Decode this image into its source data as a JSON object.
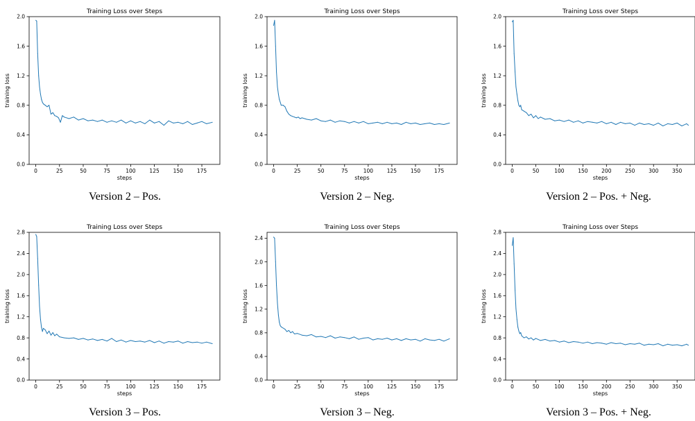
{
  "figure": {
    "domain": "Chart",
    "layout": "grid 2 rows x 3 columns"
  },
  "chart_data": [
    {
      "type": "line",
      "title": "Training Loss over Steps",
      "xlabel": "steps",
      "ylabel": "training loss",
      "caption": "Version 2 – Pos.",
      "xlim": [
        -7,
        194
      ],
      "ylim": [
        0,
        2.0
      ],
      "xticks": [
        0,
        25,
        50,
        75,
        100,
        125,
        150,
        175
      ],
      "yticks": [
        0.0,
        0.4,
        0.8,
        1.2,
        1.6,
        2.0
      ],
      "grid": false,
      "legend": "none",
      "series": [
        {
          "color": "#1f77b4",
          "x": [
            0,
            1,
            2,
            3,
            4,
            5,
            6,
            7,
            8,
            10,
            12,
            14,
            16,
            18,
            20,
            22,
            24,
            26,
            28,
            30,
            35,
            40,
            45,
            50,
            55,
            60,
            65,
            70,
            75,
            80,
            85,
            90,
            95,
            100,
            105,
            110,
            115,
            120,
            125,
            130,
            135,
            140,
            145,
            150,
            155,
            160,
            165,
            170,
            175,
            180,
            186
          ],
          "y": [
            1.95,
            1.94,
            1.5,
            1.2,
            1.05,
            0.95,
            0.88,
            0.84,
            0.82,
            0.8,
            0.78,
            0.8,
            0.68,
            0.7,
            0.66,
            0.65,
            0.63,
            0.57,
            0.66,
            0.64,
            0.62,
            0.64,
            0.6,
            0.62,
            0.59,
            0.6,
            0.58,
            0.6,
            0.57,
            0.59,
            0.57,
            0.6,
            0.56,
            0.59,
            0.56,
            0.58,
            0.55,
            0.6,
            0.56,
            0.58,
            0.53,
            0.59,
            0.56,
            0.57,
            0.55,
            0.58,
            0.54,
            0.56,
            0.58,
            0.55,
            0.57
          ]
        }
      ]
    },
    {
      "type": "line",
      "title": "Training Loss over Steps",
      "xlabel": "steps",
      "ylabel": "training loss",
      "caption": "Version 2 – Neg.",
      "xlim": [
        -7,
        194
      ],
      "ylim": [
        0,
        2.0
      ],
      "xticks": [
        0,
        25,
        50,
        75,
        100,
        125,
        150,
        175
      ],
      "yticks": [
        0.0,
        0.4,
        0.8,
        1.2,
        1.6,
        2.0
      ],
      "grid": false,
      "legend": "none",
      "series": [
        {
          "color": "#1f77b4",
          "x": [
            0,
            1,
            2,
            3,
            4,
            5,
            6,
            7,
            8,
            10,
            12,
            14,
            16,
            18,
            20,
            22,
            24,
            26,
            28,
            30,
            35,
            40,
            45,
            50,
            55,
            60,
            65,
            70,
            75,
            80,
            85,
            90,
            95,
            100,
            105,
            110,
            115,
            120,
            125,
            130,
            135,
            140,
            145,
            150,
            155,
            160,
            165,
            170,
            175,
            180,
            186
          ],
          "y": [
            1.88,
            1.95,
            1.6,
            1.25,
            1.05,
            0.95,
            0.88,
            0.84,
            0.8,
            0.8,
            0.78,
            0.72,
            0.68,
            0.66,
            0.65,
            0.64,
            0.63,
            0.64,
            0.62,
            0.63,
            0.61,
            0.6,
            0.62,
            0.59,
            0.58,
            0.6,
            0.57,
            0.59,
            0.58,
            0.56,
            0.58,
            0.56,
            0.58,
            0.55,
            0.56,
            0.57,
            0.55,
            0.57,
            0.55,
            0.56,
            0.54,
            0.57,
            0.55,
            0.56,
            0.54,
            0.55,
            0.56,
            0.54,
            0.55,
            0.54,
            0.56
          ]
        }
      ]
    },
    {
      "type": "line",
      "title": "Training Loss over Steps",
      "xlabel": "steps",
      "ylabel": "training loss",
      "caption": "Version 2 – Pos. + Neg.",
      "xlim": [
        -14,
        388
      ],
      "ylim": [
        0,
        2.0
      ],
      "xticks": [
        0,
        50,
        100,
        150,
        200,
        250,
        300,
        350
      ],
      "yticks": [
        0.0,
        0.4,
        0.8,
        1.2,
        1.6,
        2.0
      ],
      "grid": false,
      "legend": "none",
      "series": [
        {
          "color": "#1f77b4",
          "x": [
            0,
            2,
            4,
            6,
            8,
            10,
            12,
            14,
            16,
            18,
            20,
            25,
            30,
            35,
            40,
            45,
            50,
            55,
            60,
            70,
            80,
            90,
            100,
            110,
            120,
            130,
            140,
            150,
            160,
            170,
            180,
            190,
            200,
            210,
            220,
            230,
            240,
            250,
            260,
            270,
            280,
            290,
            300,
            310,
            320,
            330,
            340,
            350,
            360,
            370,
            374
          ],
          "y": [
            1.93,
            1.95,
            1.5,
            1.25,
            1.05,
            0.95,
            0.86,
            0.8,
            0.78,
            0.8,
            0.74,
            0.72,
            0.7,
            0.66,
            0.68,
            0.63,
            0.66,
            0.62,
            0.64,
            0.61,
            0.62,
            0.59,
            0.6,
            0.58,
            0.6,
            0.57,
            0.59,
            0.56,
            0.58,
            0.57,
            0.56,
            0.58,
            0.55,
            0.57,
            0.54,
            0.57,
            0.55,
            0.56,
            0.53,
            0.56,
            0.54,
            0.55,
            0.53,
            0.56,
            0.52,
            0.55,
            0.54,
            0.56,
            0.52,
            0.55,
            0.53
          ]
        }
      ]
    },
    {
      "type": "line",
      "title": "Training Loss over Steps",
      "xlabel": "steps",
      "ylabel": "training loss",
      "caption": "Version 3 – Pos.",
      "xlim": [
        -7,
        194
      ],
      "ylim": [
        0,
        2.8
      ],
      "xticks": [
        0,
        25,
        50,
        75,
        100,
        125,
        150,
        175
      ],
      "yticks": [
        0.0,
        0.4,
        0.8,
        1.2,
        1.6,
        2.0,
        2.4,
        2.8
      ],
      "grid": false,
      "legend": "none",
      "series": [
        {
          "color": "#1f77b4",
          "x": [
            0,
            1,
            2,
            3,
            4,
            5,
            6,
            7,
            8,
            10,
            12,
            14,
            16,
            18,
            20,
            22,
            25,
            30,
            35,
            40,
            45,
            50,
            55,
            60,
            65,
            70,
            75,
            80,
            85,
            90,
            95,
            100,
            105,
            110,
            115,
            120,
            125,
            130,
            135,
            140,
            145,
            150,
            155,
            160,
            165,
            170,
            175,
            180,
            186
          ],
          "y": [
            2.76,
            2.72,
            2.3,
            1.8,
            1.4,
            1.15,
            1.0,
            0.92,
            0.98,
            0.95,
            0.88,
            0.93,
            0.85,
            0.9,
            0.84,
            0.87,
            0.82,
            0.8,
            0.79,
            0.8,
            0.77,
            0.79,
            0.76,
            0.78,
            0.75,
            0.77,
            0.74,
            0.79,
            0.73,
            0.76,
            0.72,
            0.75,
            0.73,
            0.74,
            0.72,
            0.75,
            0.71,
            0.74,
            0.7,
            0.73,
            0.72,
            0.74,
            0.7,
            0.73,
            0.71,
            0.72,
            0.7,
            0.72,
            0.69
          ]
        }
      ]
    },
    {
      "type": "line",
      "title": "Training Loss over Steps",
      "xlabel": "steps",
      "ylabel": "training loss",
      "caption": "Version 3 – Neg.",
      "xlim": [
        -7,
        194
      ],
      "ylim": [
        0,
        2.5
      ],
      "xticks": [
        0,
        25,
        50,
        75,
        100,
        125,
        150,
        175
      ],
      "yticks": [
        0.0,
        0.4,
        0.8,
        1.2,
        1.6,
        2.0,
        2.4
      ],
      "grid": false,
      "legend": "none",
      "series": [
        {
          "color": "#1f77b4",
          "x": [
            0,
            1,
            2,
            3,
            4,
            5,
            6,
            7,
            8,
            10,
            12,
            14,
            16,
            18,
            20,
            22,
            25,
            30,
            35,
            40,
            45,
            50,
            55,
            60,
            65,
            70,
            75,
            80,
            85,
            90,
            95,
            100,
            105,
            110,
            115,
            120,
            125,
            130,
            135,
            140,
            145,
            150,
            155,
            160,
            165,
            170,
            175,
            180,
            186
          ],
          "y": [
            2.42,
            2.4,
            2.0,
            1.6,
            1.3,
            1.1,
            0.98,
            0.92,
            0.9,
            0.88,
            0.86,
            0.82,
            0.84,
            0.8,
            0.82,
            0.78,
            0.79,
            0.76,
            0.75,
            0.77,
            0.73,
            0.74,
            0.72,
            0.75,
            0.71,
            0.73,
            0.72,
            0.7,
            0.73,
            0.69,
            0.71,
            0.72,
            0.68,
            0.7,
            0.69,
            0.71,
            0.68,
            0.7,
            0.67,
            0.7,
            0.68,
            0.69,
            0.66,
            0.7,
            0.68,
            0.67,
            0.69,
            0.66,
            0.7
          ]
        }
      ]
    },
    {
      "type": "line",
      "title": "Training Loss over Steps",
      "xlabel": "steps",
      "ylabel": "training loss",
      "caption": "Version 3 – Pos. + Neg.",
      "xlim": [
        -14,
        388
      ],
      "ylim": [
        0,
        2.8
      ],
      "xticks": [
        0,
        50,
        100,
        150,
        200,
        250,
        300,
        350
      ],
      "yticks": [
        0.0,
        0.4,
        0.8,
        1.2,
        1.6,
        2.0,
        2.4,
        2.8
      ],
      "grid": false,
      "legend": "none",
      "series": [
        {
          "color": "#1f77b4",
          "x": [
            0,
            2,
            4,
            6,
            8,
            10,
            12,
            14,
            16,
            18,
            20,
            25,
            30,
            35,
            40,
            45,
            50,
            55,
            60,
            70,
            80,
            90,
            100,
            110,
            120,
            130,
            140,
            150,
            160,
            170,
            180,
            190,
            200,
            210,
            220,
            230,
            240,
            250,
            260,
            270,
            280,
            290,
            300,
            310,
            320,
            330,
            340,
            350,
            360,
            370,
            374
          ],
          "y": [
            2.55,
            2.7,
            2.2,
            1.7,
            1.35,
            1.15,
            1.0,
            0.93,
            0.88,
            0.9,
            0.84,
            0.8,
            0.82,
            0.78,
            0.8,
            0.76,
            0.79,
            0.77,
            0.75,
            0.77,
            0.74,
            0.75,
            0.72,
            0.74,
            0.71,
            0.73,
            0.72,
            0.7,
            0.72,
            0.69,
            0.71,
            0.7,
            0.68,
            0.71,
            0.69,
            0.7,
            0.67,
            0.69,
            0.68,
            0.7,
            0.66,
            0.68,
            0.67,
            0.69,
            0.65,
            0.68,
            0.66,
            0.67,
            0.65,
            0.68,
            0.66
          ]
        }
      ]
    }
  ]
}
